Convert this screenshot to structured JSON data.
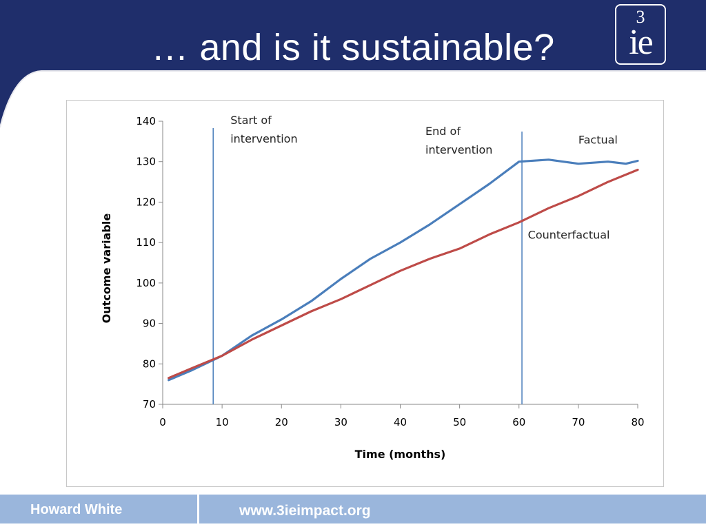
{
  "slide": {
    "title": "… and is it sustainable?",
    "logo": {
      "sup": "3",
      "main": "ie"
    },
    "footer": {
      "author": "Howard White",
      "url": "www.3ieimpact.org"
    },
    "colors": {
      "navy": "#1f2e6b",
      "footer": "#9ab6dc",
      "factual": "#4a7ebb",
      "counterfactual": "#be4b48",
      "marker": "#4a7ebb"
    }
  },
  "chart_data": {
    "type": "line",
    "title": "",
    "xlabel": "Time (months)",
    "ylabel": "Outcome variable",
    "xlim": [
      0,
      80
    ],
    "ylim": [
      70,
      140
    ],
    "xticks": [
      0,
      10,
      20,
      30,
      40,
      50,
      60,
      70,
      80
    ],
    "yticks": [
      70,
      80,
      90,
      100,
      110,
      120,
      130,
      140
    ],
    "grid": false,
    "series": [
      {
        "name": "Factual",
        "x": [
          1,
          5,
          10,
          15,
          20,
          25,
          30,
          35,
          40,
          45,
          50,
          55,
          60,
          65,
          70,
          75,
          78,
          80
        ],
        "y": [
          76,
          78.5,
          82,
          87,
          91,
          95.5,
          101,
          106,
          110,
          114.5,
          119.5,
          124.5,
          130,
          130.5,
          129.5,
          130,
          129.5,
          130.2
        ]
      },
      {
        "name": "Counterfactual",
        "x": [
          1,
          5,
          10,
          15,
          20,
          25,
          30,
          35,
          40,
          45,
          50,
          55,
          60,
          65,
          70,
          75,
          80
        ],
        "y": [
          76.5,
          79,
          82,
          86,
          89.5,
          93,
          96,
          99.5,
          103,
          106,
          108.5,
          112,
          115,
          118.5,
          121.5,
          125,
          128
        ]
      }
    ],
    "markers": [
      {
        "x": 8.5,
        "label": [
          "Start of",
          "intervention"
        ]
      },
      {
        "x": 60.5,
        "label": [
          "End of",
          "intervention"
        ]
      }
    ],
    "annotations": [
      {
        "text": "Factual",
        "x": 70,
        "y": 134.5
      },
      {
        "text": "Counterfactual",
        "x": 61.5,
        "y": 111
      }
    ]
  }
}
